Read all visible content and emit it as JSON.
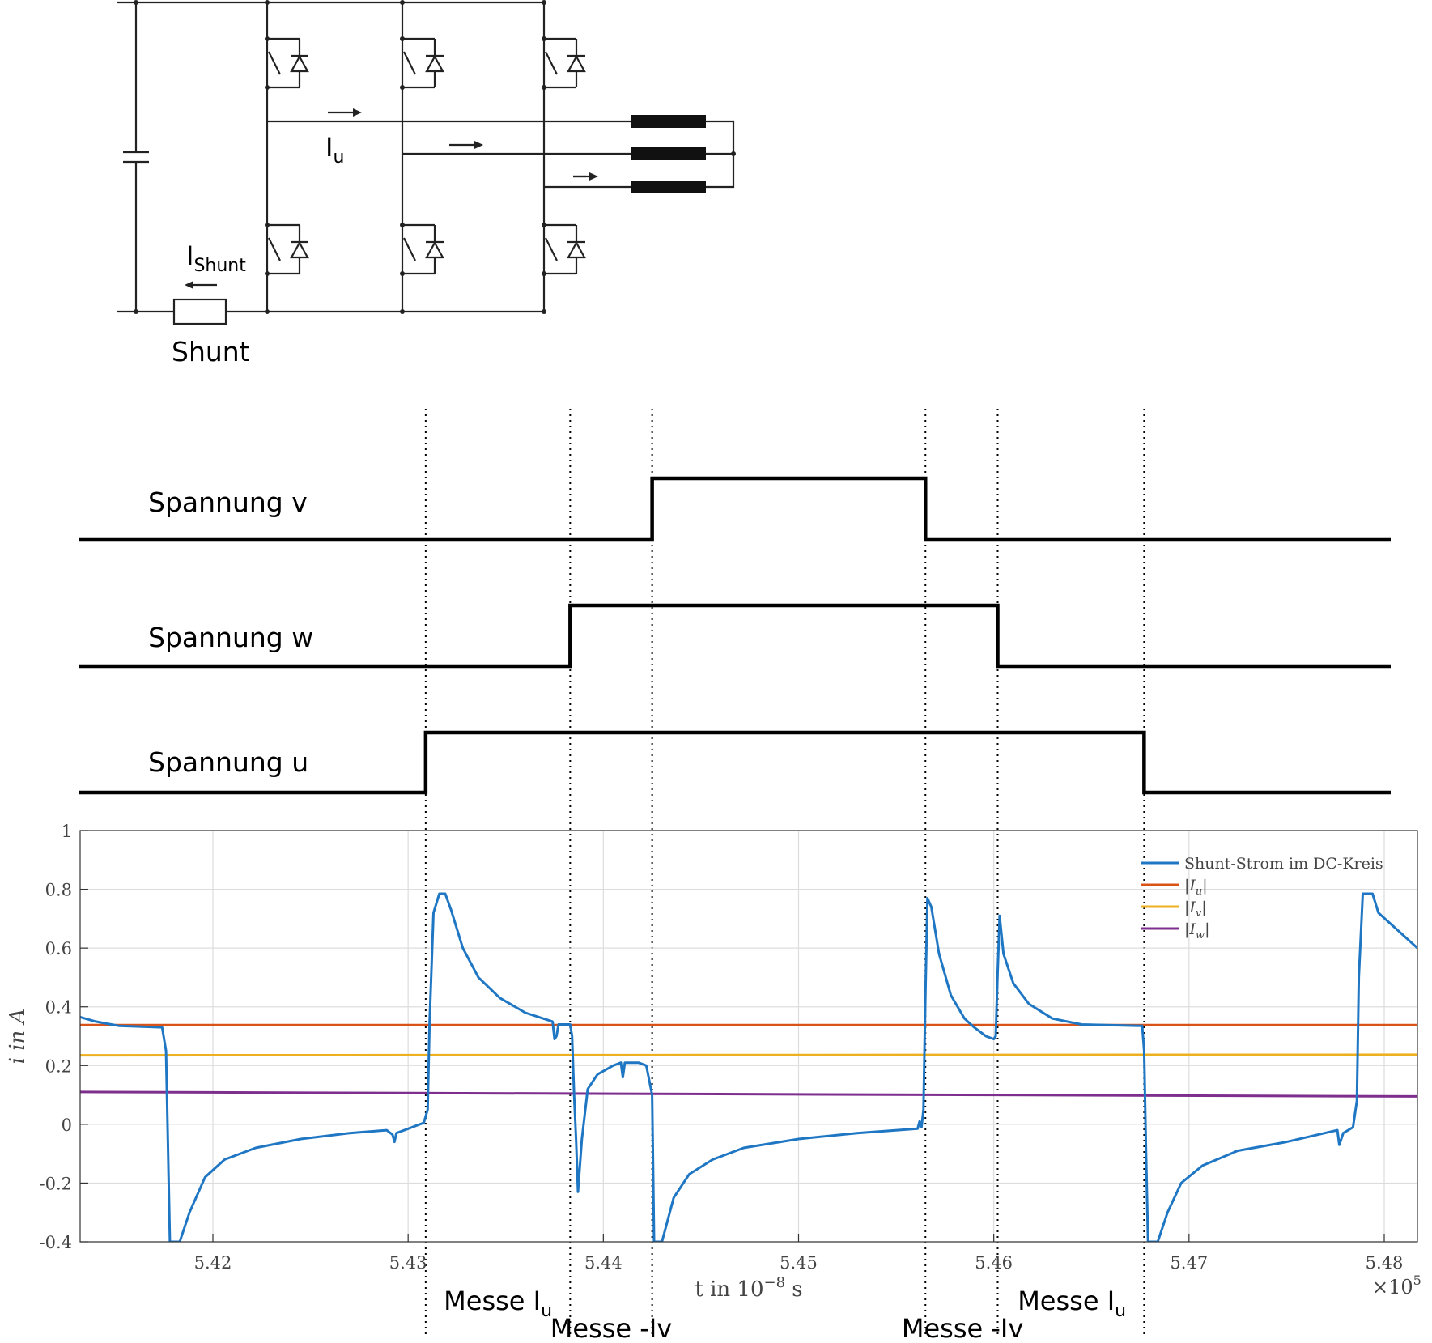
{
  "circuit": {
    "label_iu_main": "I",
    "label_iu_sub": "u",
    "label_ishunt_main": "I",
    "label_ishunt_sub": "Shunt",
    "label_shunt": "Shunt"
  },
  "signals": [
    {
      "label": "Spannung v",
      "rise": 5.4425,
      "fall": 5.4565
    },
    {
      "label": "Spannung w",
      "rise": 5.4383,
      "fall": 5.4602
    },
    {
      "label": "Spannung u",
      "rise": 5.4309,
      "fall": 5.4677
    }
  ],
  "markers": [
    5.4309,
    5.4383,
    5.4425,
    5.4565,
    5.4602,
    5.4677
  ],
  "annotations": [
    {
      "main": "Messe I",
      "sub": "u",
      "x": 5.4346
    },
    {
      "main": "Messe -Iv",
      "sub": "",
      "x": 5.4404
    },
    {
      "main": "Messe -Iv",
      "sub": "",
      "x": 5.4584
    },
    {
      "main": "Messe I",
      "sub": "u",
      "x": 5.464
    }
  ],
  "chart_data": {
    "type": "line",
    "xlabel_main": "t in 10",
    "xlabel_exp": "−8",
    "xlabel_unit": " s",
    "x_multiplier": "×10",
    "x_multiplier_exp": "5",
    "ylabel": "i in A",
    "xlim": [
      5.4132,
      5.4817
    ],
    "ylim": [
      -0.4,
      1.0
    ],
    "xticks": [
      5.42,
      5.43,
      5.44,
      5.45,
      5.46,
      5.47,
      5.48
    ],
    "xtick_labels": [
      "5.42",
      "5.43",
      "5.44",
      "5.45",
      "5.46",
      "5.47",
      "5.48"
    ],
    "yticks": [
      -0.4,
      -0.2,
      0,
      0.2,
      0.4,
      0.6,
      0.8,
      1
    ],
    "ytick_labels": [
      "-0.4",
      "-0.2",
      "0",
      "0.2",
      "0.4",
      "0.6",
      "0.8",
      "1"
    ],
    "grid": true,
    "legend_position": "top-right",
    "series": [
      {
        "name": "Shunt-Strom im DC-Kreis",
        "color": "#1f77c4",
        "points": [
          [
            5.4132,
            0.365
          ],
          [
            5.414,
            0.35
          ],
          [
            5.4148,
            0.34
          ],
          [
            5.4152,
            0.335
          ],
          [
            5.4174,
            0.33
          ],
          [
            5.4176,
            0.25
          ],
          [
            5.4178,
            -0.4
          ],
          [
            5.4183,
            -0.4
          ],
          [
            5.4188,
            -0.3
          ],
          [
            5.4196,
            -0.18
          ],
          [
            5.4206,
            -0.12
          ],
          [
            5.4222,
            -0.08
          ],
          [
            5.4245,
            -0.05
          ],
          [
            5.427,
            -0.03
          ],
          [
            5.4289,
            -0.02
          ],
          [
            5.4292,
            -0.035
          ],
          [
            5.4293,
            -0.06
          ],
          [
            5.4294,
            -0.03
          ],
          [
            5.43,
            -0.015
          ],
          [
            5.4308,
            0.005
          ],
          [
            5.431,
            0.05
          ],
          [
            5.4311,
            0.35
          ],
          [
            5.4313,
            0.72
          ],
          [
            5.4316,
            0.785
          ],
          [
            5.4319,
            0.785
          ],
          [
            5.4322,
            0.73
          ],
          [
            5.4328,
            0.6
          ],
          [
            5.4336,
            0.5
          ],
          [
            5.4347,
            0.43
          ],
          [
            5.436,
            0.38
          ],
          [
            5.4374,
            0.35
          ],
          [
            5.4375,
            0.29
          ],
          [
            5.4376,
            0.3
          ],
          [
            5.4377,
            0.34
          ],
          [
            5.4383,
            0.34
          ],
          [
            5.4384,
            0.3
          ],
          [
            5.4385,
            0.1
          ],
          [
            5.4386,
            -0.05
          ],
          [
            5.4387,
            -0.23
          ],
          [
            5.4389,
            -0.05
          ],
          [
            5.4392,
            0.12
          ],
          [
            5.4397,
            0.17
          ],
          [
            5.4405,
            0.2
          ],
          [
            5.4409,
            0.21
          ],
          [
            5.441,
            0.16
          ],
          [
            5.4411,
            0.21
          ],
          [
            5.4418,
            0.21
          ],
          [
            5.4422,
            0.2
          ],
          [
            5.4425,
            0.1
          ],
          [
            5.4426,
            -0.4
          ],
          [
            5.443,
            -0.4
          ],
          [
            5.4436,
            -0.25
          ],
          [
            5.4444,
            -0.17
          ],
          [
            5.4456,
            -0.12
          ],
          [
            5.4472,
            -0.08
          ],
          [
            5.45,
            -0.05
          ],
          [
            5.453,
            -0.03
          ],
          [
            5.4561,
            -0.015
          ],
          [
            5.4562,
            0.01
          ],
          [
            5.4563,
            -0.01
          ],
          [
            5.4564,
            0.05
          ],
          [
            5.4565,
            0.45
          ],
          [
            5.4566,
            0.77
          ],
          [
            5.4568,
            0.74
          ],
          [
            5.4572,
            0.58
          ],
          [
            5.4578,
            0.44
          ],
          [
            5.4585,
            0.36
          ],
          [
            5.459,
            0.33
          ],
          [
            5.4596,
            0.3
          ],
          [
            5.46,
            0.29
          ],
          [
            5.4601,
            0.3
          ],
          [
            5.4602,
            0.52
          ],
          [
            5.4603,
            0.71
          ],
          [
            5.4605,
            0.58
          ],
          [
            5.461,
            0.48
          ],
          [
            5.4618,
            0.41
          ],
          [
            5.463,
            0.36
          ],
          [
            5.4645,
            0.34
          ],
          [
            5.4676,
            0.335
          ],
          [
            5.4677,
            0.25
          ],
          [
            5.4678,
            -0.1
          ],
          [
            5.4679,
            -0.4
          ],
          [
            5.4684,
            -0.4
          ],
          [
            5.4689,
            -0.3
          ],
          [
            5.4696,
            -0.2
          ],
          [
            5.4707,
            -0.14
          ],
          [
            5.4725,
            -0.09
          ],
          [
            5.475,
            -0.06
          ],
          [
            5.4776,
            -0.02
          ],
          [
            5.4777,
            -0.07
          ],
          [
            5.4779,
            -0.03
          ],
          [
            5.4784,
            -0.01
          ],
          [
            5.4786,
            0.08
          ],
          [
            5.4787,
            0.5
          ],
          [
            5.4789,
            0.785
          ],
          [
            5.4794,
            0.785
          ],
          [
            5.4797,
            0.72
          ],
          [
            5.4817,
            0.6
          ]
        ]
      },
      {
        "name": "|Iu|",
        "color": "#d95319",
        "points": [
          [
            5.4132,
            0.338
          ],
          [
            5.4817,
            0.338
          ]
        ]
      },
      {
        "name": "|Iv|",
        "color": "#edb120",
        "points": [
          [
            5.4132,
            0.235
          ],
          [
            5.4817,
            0.237
          ]
        ]
      },
      {
        "name": "|Iw|",
        "color": "#7e2f8e",
        "points": [
          [
            5.4132,
            0.11
          ],
          [
            5.4817,
            0.095
          ]
        ]
      }
    ],
    "legend_entries": [
      {
        "main": "Shunt-Strom im DC-Kreis",
        "sub": ""
      },
      {
        "main": "|I",
        "sub": "u",
        "tail": "|"
      },
      {
        "main": "|I",
        "sub": "v",
        "tail": "|"
      },
      {
        "main": "|I",
        "sub": "w",
        "tail": "|"
      }
    ]
  }
}
